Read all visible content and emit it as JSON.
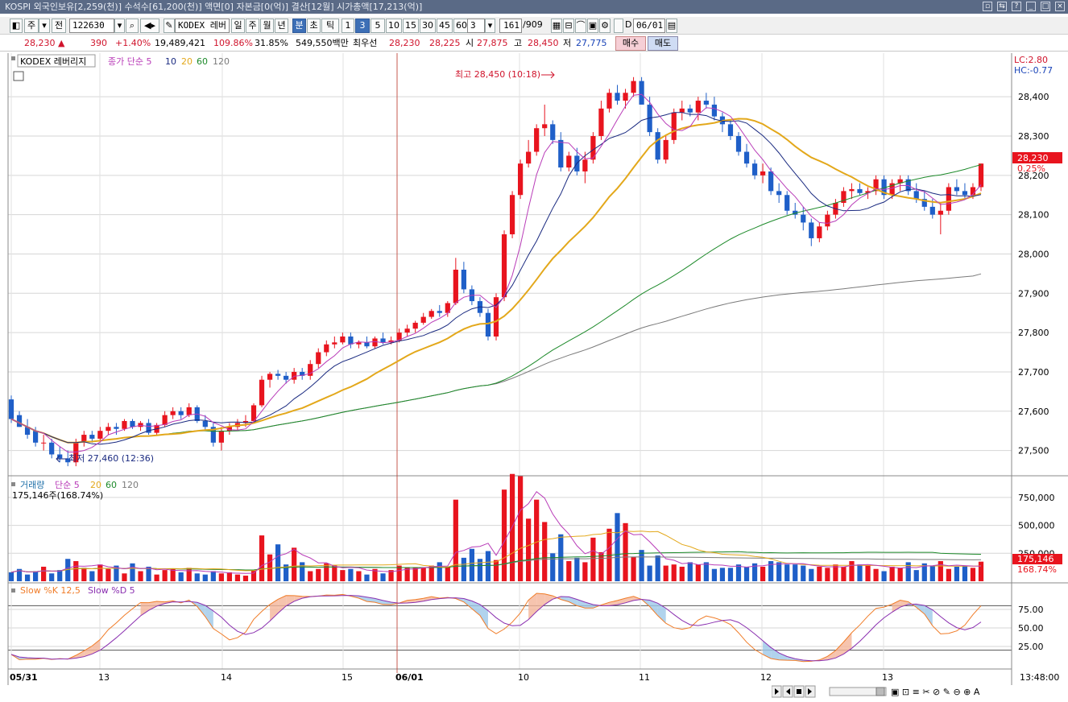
{
  "titlebar": {
    "text": "KOSPI 외국인보유[2,259(천)] 수석수[61,200(천)] 액면[0] 자본금[0(억)] 결산[12월] 시가총액[17,213(억)]"
  },
  "toolbar": {
    "period_buttons": [
      "주",
      "전"
    ],
    "code": "122630",
    "name": "KODEX 레버",
    "periods": [
      "일",
      "주",
      "월",
      "년",
      "분",
      "초",
      "틱"
    ],
    "selected_period": "분",
    "intervals": [
      "1",
      "3",
      "5",
      "10",
      "15",
      "30",
      "45",
      "60"
    ],
    "selected_interval": "3",
    "interval_box": "3",
    "count": "161",
    "total": "/909",
    "date": "06/01",
    "d_label": "D"
  },
  "quote": {
    "price": "28,230 ▲",
    "change": "390",
    "change_pct": "+1.40%",
    "volume": "19,489,421",
    "vol_ratio": "109.86%",
    "turnover": "31.85%",
    "amount": "549,550백만",
    "priority_label": "최우선",
    "ask": "28,230",
    "bid": "28,225",
    "open_label": "시",
    "open": "27,875",
    "high_label": "고",
    "high": "28,450",
    "low_label": "저",
    "low": "27,775",
    "buy_label": "매수",
    "sell_label": "매도"
  },
  "price_panel": {
    "name": "KODEX 레버리지",
    "ma_label": "종가 단순 5",
    "ma_periods": [
      "10",
      "20",
      "60",
      "120"
    ],
    "lc": "LC:2.80",
    "hc": "HC:-0.77",
    "max_label": "최고 28,450 (10:18)",
    "min_label": "최저 27,460 (12:36)",
    "last_price": "28,230",
    "last_pct": "0.25%",
    "y_ticks": [
      "28,400",
      "28,300",
      "28,200",
      "28,100",
      "28,000",
      "27,900",
      "27,800",
      "27,700",
      "27,600",
      "27,500"
    ]
  },
  "volume_panel": {
    "label": "거래량",
    "ma_label": "단순 5",
    "ma_periods": [
      "20",
      "60",
      "120"
    ],
    "value": "175,146주(168.74%)",
    "last": "175,146",
    "last_pct": "168.74%",
    "y_ticks": [
      "750,000",
      "500,000",
      "250,000"
    ]
  },
  "stoch_panel": {
    "k_label": "Slow %K 12,5",
    "d_label": "Slow %D 5",
    "y_ticks": [
      "75.00",
      "50.00",
      "25.00"
    ]
  },
  "x_axis": {
    "labels": [
      "05/31",
      "13",
      "14",
      "15",
      "06/01",
      "10",
      "11",
      "12",
      "13"
    ],
    "time": "13:48:00"
  },
  "colors": {
    "up": "#e8141e",
    "down": "#1f5fc8",
    "ma5": "#b93cb8",
    "ma10": "#1a2a80",
    "ma20": "#e3a81b",
    "ma60": "#1d8a2a",
    "ma120": "#7a7a7a",
    "k": "#f07c28",
    "d": "#8a2fb0"
  },
  "chart_data": {
    "type": "candlestick",
    "title": "KODEX 레버리지",
    "interval": "3분",
    "ylim": [
      27450,
      28470
    ],
    "candles_ohlc": [
      [
        27630,
        27640,
        27570,
        27580
      ],
      [
        27590,
        27600,
        27560,
        27560
      ],
      [
        27560,
        27580,
        27530,
        27540
      ],
      [
        27550,
        27560,
        27510,
        27520
      ],
      [
        27520,
        27540,
        27500,
        27520
      ],
      [
        27520,
        27530,
        27480,
        27490
      ],
      [
        27490,
        27510,
        27470,
        27480
      ],
      [
        27480,
        27500,
        27460,
        27470
      ],
      [
        27470,
        27530,
        27460,
        27520
      ],
      [
        27520,
        27550,
        27510,
        27540
      ],
      [
        27540,
        27550,
        27520,
        27530
      ],
      [
        27530,
        27560,
        27520,
        27550
      ],
      [
        27550,
        27570,
        27540,
        27560
      ],
      [
        27560,
        27570,
        27540,
        27555
      ],
      [
        27555,
        27580,
        27550,
        27575
      ],
      [
        27575,
        27580,
        27555,
        27560
      ],
      [
        27560,
        27575,
        27550,
        27570
      ],
      [
        27570,
        27580,
        27540,
        27545
      ],
      [
        27545,
        27570,
        27540,
        27565
      ],
      [
        27565,
        27600,
        27560,
        27590
      ],
      [
        27590,
        27610,
        27580,
        27600
      ],
      [
        27600,
        27610,
        27580,
        27590
      ],
      [
        27590,
        27620,
        27585,
        27610
      ],
      [
        27610,
        27615,
        27570,
        27575
      ],
      [
        27575,
        27590,
        27550,
        27560
      ],
      [
        27560,
        27570,
        27510,
        27520
      ],
      [
        27520,
        27560,
        27500,
        27550
      ],
      [
        27550,
        27570,
        27540,
        27560
      ],
      [
        27560,
        27580,
        27550,
        27570
      ],
      [
        27570,
        27590,
        27560,
        27575
      ],
      [
        27575,
        27620,
        27570,
        27615
      ],
      [
        27615,
        27690,
        27610,
        27680
      ],
      [
        27680,
        27700,
        27660,
        27695
      ],
      [
        27695,
        27705,
        27680,
        27690
      ],
      [
        27690,
        27700,
        27670,
        27680
      ],
      [
        27680,
        27710,
        27670,
        27700
      ],
      [
        27700,
        27710,
        27680,
        27690
      ],
      [
        27690,
        27730,
        27680,
        27720
      ],
      [
        27720,
        27760,
        27710,
        27750
      ],
      [
        27750,
        27780,
        27740,
        27770
      ],
      [
        27770,
        27790,
        27760,
        27775
      ],
      [
        27775,
        27800,
        27770,
        27790
      ],
      [
        27790,
        27800,
        27760,
        27770
      ],
      [
        27770,
        27780,
        27760,
        27775
      ],
      [
        27775,
        27790,
        27760,
        27765
      ],
      [
        27765,
        27790,
        27760,
        27785
      ],
      [
        27785,
        27800,
        27770,
        27775
      ],
      [
        27775,
        27790,
        27770,
        27780
      ],
      [
        27780,
        27810,
        27775,
        27800
      ],
      [
        27800,
        27820,
        27790,
        27810
      ],
      [
        27810,
        27830,
        27800,
        27825
      ],
      [
        27825,
        27850,
        27820,
        27840
      ],
      [
        27840,
        27860,
        27835,
        27855
      ],
      [
        27855,
        27870,
        27840,
        27850
      ],
      [
        27850,
        27880,
        27840,
        27875
      ],
      [
        27875,
        27990,
        27870,
        27960
      ],
      [
        27960,
        27980,
        27900,
        27910
      ],
      [
        27910,
        27920,
        27870,
        27880
      ],
      [
        27880,
        27890,
        27840,
        27850
      ],
      [
        27850,
        27860,
        27780,
        27790
      ],
      [
        27790,
        27900,
        27780,
        27890
      ],
      [
        27890,
        28060,
        27880,
        28050
      ],
      [
        28050,
        28160,
        28040,
        28150
      ],
      [
        28150,
        28240,
        28140,
        28230
      ],
      [
        28230,
        28290,
        28220,
        28260
      ],
      [
        28260,
        28330,
        28250,
        28320
      ],
      [
        28320,
        28380,
        28300,
        28330
      ],
      [
        28330,
        28340,
        28280,
        28290
      ],
      [
        28290,
        28310,
        28210,
        28220
      ],
      [
        28220,
        28260,
        28210,
        28250
      ],
      [
        28250,
        28270,
        28200,
        28210
      ],
      [
        28210,
        28260,
        28180,
        28240
      ],
      [
        28240,
        28310,
        28230,
        28300
      ],
      [
        28300,
        28390,
        28290,
        28370
      ],
      [
        28370,
        28420,
        28360,
        28410
      ],
      [
        28410,
        28430,
        28380,
        28390
      ],
      [
        28390,
        28420,
        28370,
        28410
      ],
      [
        28410,
        28450,
        28400,
        28440
      ],
      [
        28440,
        28450,
        28380,
        28380
      ],
      [
        28380,
        28400,
        28300,
        28310
      ],
      [
        28310,
        28320,
        28230,
        28240
      ],
      [
        28240,
        28300,
        28230,
        28290
      ],
      [
        28290,
        28370,
        28280,
        28360
      ],
      [
        28360,
        28390,
        28340,
        28370
      ],
      [
        28370,
        28380,
        28350,
        28360
      ],
      [
        28360,
        28400,
        28340,
        28390
      ],
      [
        28390,
        28410,
        28370,
        28380
      ],
      [
        28380,
        28400,
        28340,
        28350
      ],
      [
        28350,
        28360,
        28310,
        28330
      ],
      [
        28330,
        28340,
        28290,
        28300
      ],
      [
        28300,
        28310,
        28250,
        28260
      ],
      [
        28260,
        28280,
        28220,
        28230
      ],
      [
        28230,
        28240,
        28190,
        28200
      ],
      [
        28200,
        28230,
        28180,
        28210
      ],
      [
        28210,
        28220,
        28150,
        28160
      ],
      [
        28160,
        28180,
        28130,
        28150
      ],
      [
        28150,
        28160,
        28100,
        28110
      ],
      [
        28110,
        28130,
        28090,
        28100
      ],
      [
        28100,
        28120,
        28060,
        28080
      ],
      [
        28080,
        28090,
        28020,
        28040
      ],
      [
        28040,
        28080,
        28030,
        28070
      ],
      [
        28070,
        28110,
        28060,
        28100
      ],
      [
        28100,
        28140,
        28090,
        28130
      ],
      [
        28130,
        28170,
        28120,
        28160
      ],
      [
        28160,
        28180,
        28140,
        28165
      ],
      [
        28165,
        28180,
        28150,
        28155
      ],
      [
        28155,
        28170,
        28140,
        28160
      ],
      [
        28160,
        28200,
        28150,
        28190
      ],
      [
        28190,
        28200,
        28140,
        28150
      ],
      [
        28150,
        28190,
        28140,
        28180
      ],
      [
        28180,
        28200,
        28160,
        28190
      ],
      [
        28190,
        28200,
        28150,
        28160
      ],
      [
        28160,
        28180,
        28130,
        28140
      ],
      [
        28140,
        28160,
        28110,
        28120
      ],
      [
        28120,
        28140,
        28090,
        28100
      ],
      [
        28100,
        28130,
        28050,
        28110
      ],
      [
        28110,
        28180,
        28100,
        28170
      ],
      [
        28170,
        28190,
        28150,
        28160
      ],
      [
        28160,
        28180,
        28140,
        28150
      ],
      [
        28150,
        28180,
        28140,
        28170
      ],
      [
        28170,
        28230,
        28160,
        28230
      ]
    ],
    "volume": [
      80000,
      110000,
      60000,
      90000,
      130000,
      70000,
      100000,
      200000,
      180000,
      120000,
      90000,
      150000,
      110000,
      140000,
      70000,
      160000,
      90000,
      130000,
      60000,
      100000,
      110000,
      80000,
      120000,
      70000,
      60000,
      90000,
      70000,
      80000,
      60000,
      50000,
      100000,
      410000,
      240000,
      330000,
      150000,
      300000,
      170000,
      90000,
      110000,
      160000,
      140000,
      100000,
      110000,
      90000,
      60000,
      110000,
      70000,
      100000,
      140000,
      120000,
      120000,
      120000,
      140000,
      170000,
      130000,
      730000,
      210000,
      290000,
      200000,
      270000,
      190000,
      820000,
      960000,
      940000,
      560000,
      730000,
      530000,
      250000,
      420000,
      180000,
      210000,
      170000,
      390000,
      260000,
      470000,
      610000,
      520000,
      220000,
      280000,
      140000,
      230000,
      140000,
      150000,
      130000,
      170000,
      150000,
      170000,
      110000,
      120000,
      120000,
      150000,
      130000,
      160000,
      130000,
      180000,
      170000,
      150000,
      150000,
      140000,
      110000,
      130000,
      120000,
      150000,
      130000,
      180000,
      150000,
      140000,
      110000,
      90000,
      130000,
      120000,
      170000,
      100000,
      160000,
      140000,
      180000,
      110000,
      130000,
      140000,
      120000,
      175146
    ],
    "vol_ylim": [
      0,
      850000
    ],
    "stoch_ylim": [
      0,
      100
    ],
    "stoch_ref": [
      80,
      20
    ],
    "markers": [
      {
        "label": "최고 28,450 (10:18)",
        "price": 28450
      },
      {
        "label": "최저 27,460 (12:36)",
        "price": 27460
      }
    ]
  }
}
